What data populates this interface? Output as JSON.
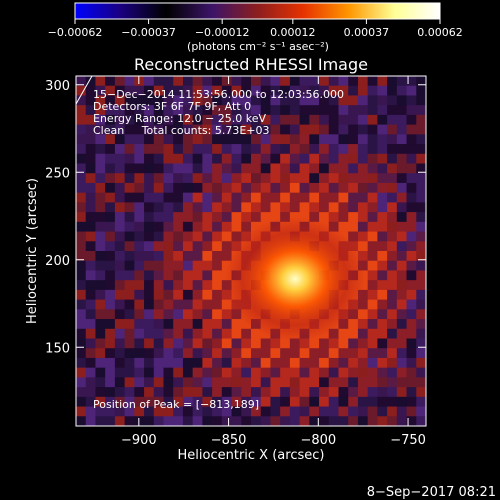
{
  "chart_data": {
    "type": "heatmap",
    "title": "Reconstructed RHESSI Image",
    "xlabel": "Heliocentric X (arcsec)",
    "ylabel": "Heliocentric Y (arcsec)",
    "xlim": [
      -935,
      -740
    ],
    "ylim": [
      105,
      305
    ],
    "x_ticks": [
      {
        "value": -900,
        "label": "−900"
      },
      {
        "value": -850,
        "label": "−850"
      },
      {
        "value": -800,
        "label": "−800"
      },
      {
        "value": -750,
        "label": "−750"
      }
    ],
    "y_ticks": [
      {
        "value": 150,
        "label": "150"
      },
      {
        "value": 200,
        "label": "200"
      },
      {
        "value": 250,
        "label": "250"
      },
      {
        "value": 300,
        "label": "300"
      }
    ],
    "colorbar": {
      "min": -0.00062,
      "max": 0.00062,
      "unit_label": "(photons cm⁻² s⁻¹ asec⁻²)",
      "ticks": [
        {
          "value": -0.00062,
          "label": "−0.00062"
        },
        {
          "value": -0.00037,
          "label": "−0.00037"
        },
        {
          "value": -0.00012,
          "label": "−0.00012"
        },
        {
          "value": 0.00012,
          "label": "0.00012"
        },
        {
          "value": 0.00037,
          "label": "0.00037"
        },
        {
          "value": 0.00062,
          "label": "0.00062"
        }
      ],
      "colors": [
        "#0000ff",
        "#1a0080",
        "#000000",
        "#3c1468",
        "#8c1e1e",
        "#e63200",
        "#ff9600",
        "#ffff96",
        "#ffffff"
      ]
    },
    "peak": {
      "x": -813,
      "y": 189
    },
    "grid": false,
    "annotations": [
      "15−Dec−2014 11:53:56.000 to 12:03:56.000",
      "Detectors: 3F 6F 7F 9F, Att 0",
      "Energy Range: 12.0 − 25.0 keV",
      "Clean     Total counts: 5.73E+03",
      "Position of Peak = [−813,189]"
    ]
  },
  "footer": {
    "timestamp": "8−Sep−2017 08:21"
  },
  "colors": {
    "background": "#000000",
    "text": "#ffffff"
  }
}
